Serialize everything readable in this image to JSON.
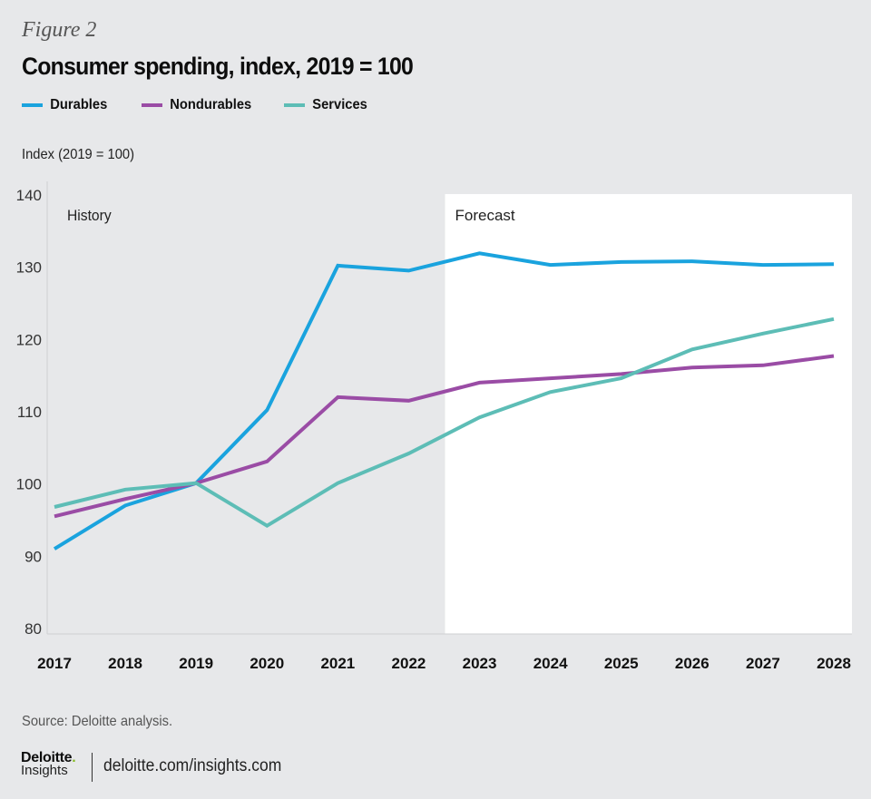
{
  "figure_label": "Figure 2",
  "footer": {
    "source": "Source: Deloitte analysis.",
    "brand": "Deloitte",
    "brand_dot": ".",
    "brand_sub": "Insights",
    "url": "deloitte.com/insights.com"
  },
  "colors": {
    "background": "#e7e8ea",
    "forecast_panel": "#ffffff",
    "durables": "#1aa3de",
    "nondurables": "#9a4ca5",
    "services": "#5dbdb6",
    "brand_green": "#86bc25"
  },
  "chart_data": {
    "type": "line",
    "title": "Consumer spending, index, 2019 = 100",
    "xlabel": "",
    "ylabel": "Index (2019 = 100)",
    "ylim": [
      80,
      140
    ],
    "yticks": [
      80,
      90,
      100,
      110,
      120,
      130,
      140
    ],
    "grid": false,
    "legend_position": "top-left",
    "x": [
      "2017",
      "2018",
      "2019",
      "2020",
      "2021",
      "2022",
      "2023",
      "2024",
      "2025",
      "2026",
      "2027",
      "2028"
    ],
    "regions": [
      {
        "label": "History",
        "from": "2017",
        "to": "2022.5"
      },
      {
        "label": "Forecast",
        "from": "2022.5",
        "to": "2028"
      }
    ],
    "series": [
      {
        "name": "Durables",
        "color_key": "durables",
        "values": [
          90.9,
          96.9,
          100.0,
          110.1,
          130.1,
          129.4,
          131.8,
          130.2,
          130.6,
          130.7,
          130.2,
          130.3
        ]
      },
      {
        "name": "Nondurables",
        "color_key": "nondurables",
        "values": [
          95.4,
          97.8,
          100.0,
          103.0,
          111.9,
          111.4,
          113.9,
          114.5,
          115.1,
          116.0,
          116.3,
          117.6
        ]
      },
      {
        "name": "Services",
        "color_key": "services",
        "values": [
          96.7,
          99.1,
          100.0,
          94.1,
          100.0,
          104.1,
          109.1,
          112.6,
          114.5,
          118.5,
          120.7,
          122.7
        ]
      }
    ]
  }
}
